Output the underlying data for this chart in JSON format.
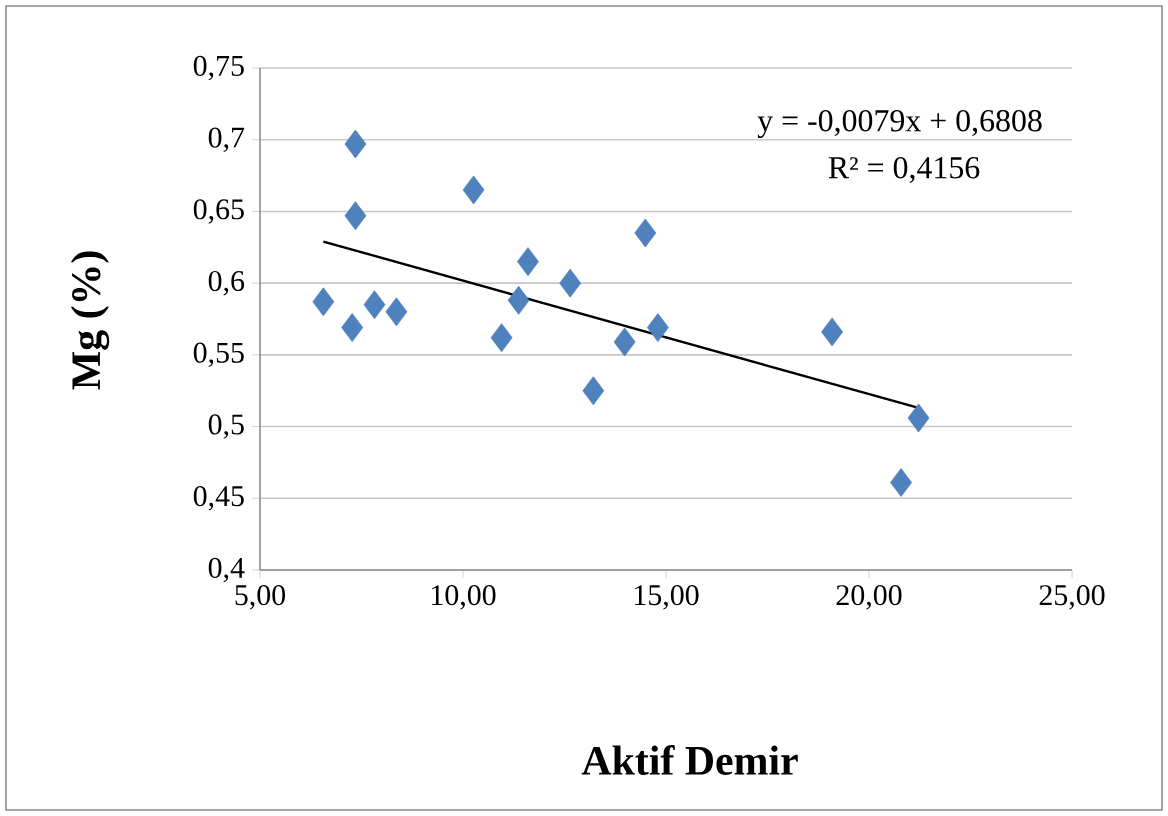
{
  "chart_data": {
    "type": "scatter",
    "xlabel": "Aktif Demir",
    "ylabel": "Mg (%)",
    "annotations": [
      "y = -0,0079x + 0,6808",
      "R² = 0,4156"
    ],
    "series": [
      {
        "color": "#4f81bd",
        "marker": "diamond",
        "x": [
          6.56,
          7.35,
          7.35,
          7.27,
          7.82,
          8.36,
          10.26,
          10.95,
          11.37,
          11.6,
          12.64,
          13.21,
          13.98,
          14.49,
          14.8,
          19.09,
          21.22,
          20.79
        ],
        "values": [
          0.587,
          0.697,
          0.647,
          0.569,
          0.585,
          0.58,
          0.665,
          0.562,
          0.588,
          0.615,
          0.6,
          0.525,
          0.559,
          0.635,
          0.569,
          0.566,
          0.506,
          0.461
        ]
      },
      {
        "type": "line",
        "color": "#000000",
        "marker": "none",
        "x": [
          6.56,
          21.22
        ],
        "values": [
          0.629,
          0.513
        ]
      }
    ],
    "xlim": [
      5,
      25
    ],
    "ylim": [
      0.4,
      0.75
    ],
    "xticks": [
      {
        "value": 5,
        "label": "5,00"
      },
      {
        "value": 10,
        "label": "10,00"
      },
      {
        "value": 15,
        "label": "15,00"
      },
      {
        "value": 20,
        "label": "20,00"
      },
      {
        "value": 25,
        "label": "25,00"
      }
    ],
    "yticks": [
      {
        "value": 0.4,
        "label": "0,4"
      },
      {
        "value": 0.45,
        "label": "0,45"
      },
      {
        "value": 0.5,
        "label": "0,5"
      },
      {
        "value": 0.55,
        "label": "0,55"
      },
      {
        "value": 0.6,
        "label": "0,6"
      },
      {
        "value": 0.65,
        "label": "0,65"
      },
      {
        "value": 0.7,
        "label": "0,7"
      },
      {
        "value": 0.75,
        "label": "0,75"
      }
    ],
    "grid": "y"
  }
}
